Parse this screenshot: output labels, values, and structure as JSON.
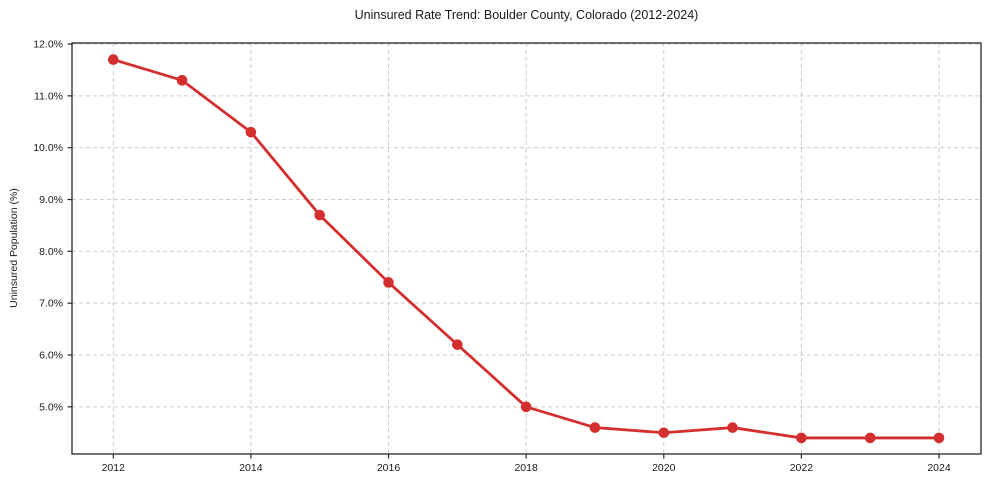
{
  "page": {
    "background_color": "#ffffff"
  },
  "chart_data": {
    "type": "line",
    "title": "Uninsured Rate Trend: Boulder County, Colorado (2012-2024)",
    "xlabel": "",
    "ylabel": "Uninsured Population (%)",
    "series": [
      {
        "name": "Uninsured rate",
        "x": [
          2012,
          2013,
          2014,
          2015,
          2016,
          2017,
          2018,
          2019,
          2020,
          2021,
          2022,
          2023,
          2024
        ],
        "values": [
          11.7,
          11.3,
          10.3,
          8.7,
          7.4,
          6.2,
          5.0,
          4.6,
          4.5,
          4.6,
          4.4,
          4.4,
          4.4
        ]
      }
    ],
    "xlim": [
      2011.4,
      2024.61
    ],
    "ylim": [
      4.09,
      12.02
    ],
    "x_ticks": [
      2012,
      2014,
      2016,
      2018,
      2020,
      2022,
      2024
    ],
    "x_tick_labels": [
      "2012",
      "2014",
      "2016",
      "2018",
      "2020",
      "2022",
      "2024"
    ],
    "y_ticks": [
      5,
      6,
      7,
      8,
      9,
      10,
      11,
      12
    ],
    "y_tick_labels": [
      "5.0%",
      "6.0%",
      "7.0%",
      "8.0%",
      "9.0%",
      "10.0%",
      "11.0%",
      "12.0%"
    ],
    "grid": true,
    "grid_style": "dashed",
    "legend": "none",
    "colors": {
      "line": "#d32f2f",
      "marker": "#d32f2f",
      "grid": "#cccccc",
      "axis": "#262626",
      "text": "#1a1a1a"
    }
  }
}
